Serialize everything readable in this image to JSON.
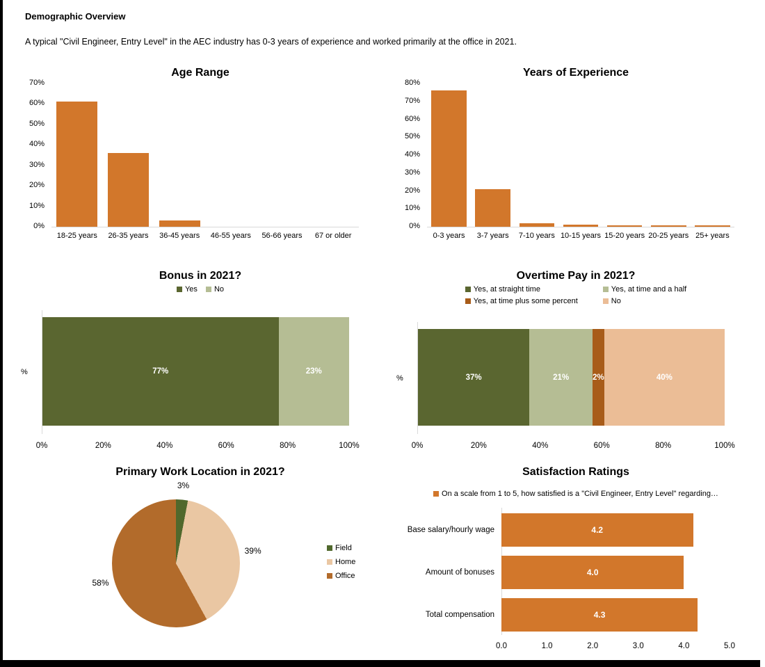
{
  "page": {
    "title": "Demographic Overview",
    "subtitle": "A typical \"Civil Engineer, Entry Level\" in the AEC industry has 0-3 years of experience and worked primarily at the office in 2021."
  },
  "colors": {
    "orange": "#D2772B",
    "dark_olive": "#5A6630",
    "sage": "#B5BD94",
    "brown": "#A85C19",
    "peach": "#EBBD96",
    "pie_field": "#50682C",
    "pie_home": "#EAC7A3",
    "pie_office": "#B26B2B",
    "axis_line": "#D9D9D9"
  },
  "chart_data": [
    {
      "id": "age_range",
      "type": "bar",
      "title": "Age Range",
      "categories": [
        "18-25 years",
        "26-35 years",
        "36-45 years",
        "46-55 years",
        "56-66 years",
        "67 or older"
      ],
      "values": [
        61,
        36,
        3,
        0,
        0,
        0
      ],
      "unit": "%",
      "ylim": [
        0,
        70
      ],
      "ytick_step": 10,
      "grid": false,
      "bar_color": "#D2772B"
    },
    {
      "id": "years_of_experience",
      "type": "bar",
      "title": "Years of Experience",
      "categories": [
        "0-3 years",
        "3-7 years",
        "7-10 years",
        "10-15 years",
        "15-20 years",
        "20-25 years",
        "25+ years"
      ],
      "values": [
        76,
        21,
        2,
        1,
        0.5,
        0.5,
        0.5
      ],
      "unit": "%",
      "ylim": [
        0,
        80
      ],
      "ytick_step": 10,
      "grid": false,
      "bar_color": "#D2772B"
    },
    {
      "id": "bonus_2021",
      "type": "stacked-bar-horizontal",
      "title": "Bonus in 2021?",
      "ylabel": "%",
      "xlim": [
        0,
        100
      ],
      "xticks": [
        "0%",
        "20%",
        "40%",
        "60%",
        "80%",
        "100%"
      ],
      "legend_position": "top",
      "series": [
        {
          "name": "Yes",
          "value": 77,
          "label": "77%",
          "color": "#5A6630"
        },
        {
          "name": "No",
          "value": 23,
          "label": "23%",
          "color": "#B5BD94"
        }
      ]
    },
    {
      "id": "overtime_pay_2021",
      "type": "stacked-bar-horizontal",
      "title": "Overtime Pay in 2021?",
      "ylabel": "%",
      "xlim": [
        0,
        100
      ],
      "xticks": [
        "0%",
        "20%",
        "40%",
        "60%",
        "80%",
        "100%"
      ],
      "legend_position": "top",
      "series": [
        {
          "name": "Yes, at straight time",
          "value": 37,
          "label": "37%",
          "color": "#5A6630"
        },
        {
          "name": "Yes, at time and a half",
          "value": 21,
          "label": "21%",
          "color": "#B5BD94"
        },
        {
          "name": "Yes, at time plus some percent",
          "value": 2,
          "label": "2%",
          "color": "#A85C19"
        },
        {
          "name": "No",
          "value": 40,
          "label": "40%",
          "color": "#EBBD96"
        }
      ]
    },
    {
      "id": "primary_work_location_2021",
      "type": "pie",
      "title": "Primary Work Location in 2021?",
      "start_angle": 0,
      "direction": "clockwise",
      "legend_position": "right",
      "slices": [
        {
          "name": "Field",
          "value": 3,
          "label": "3%",
          "color": "#50682C"
        },
        {
          "name": "Home",
          "value": 39,
          "label": "39%",
          "color": "#EAC7A3"
        },
        {
          "name": "Office",
          "value": 58,
          "label": "58%",
          "color": "#B26B2B"
        }
      ]
    },
    {
      "id": "satisfaction_ratings",
      "type": "bar-horizontal",
      "title": "Satisfaction Ratings",
      "legend": "On a scale from 1 to 5, how satisfied is a \"Civil Engineer, Entry Level\" regarding…",
      "categories": [
        "Base salary/hourly wage",
        "Amount of bonuses",
        "Total compensation"
      ],
      "values": [
        4.2,
        4.0,
        4.3
      ],
      "labels": [
        "4.2",
        "4.0",
        "4.3"
      ],
      "xlim": [
        0,
        5
      ],
      "xticks": [
        "0.0",
        "1.0",
        "2.0",
        "3.0",
        "4.0",
        "5.0"
      ],
      "bar_color": "#D2772B"
    }
  ]
}
